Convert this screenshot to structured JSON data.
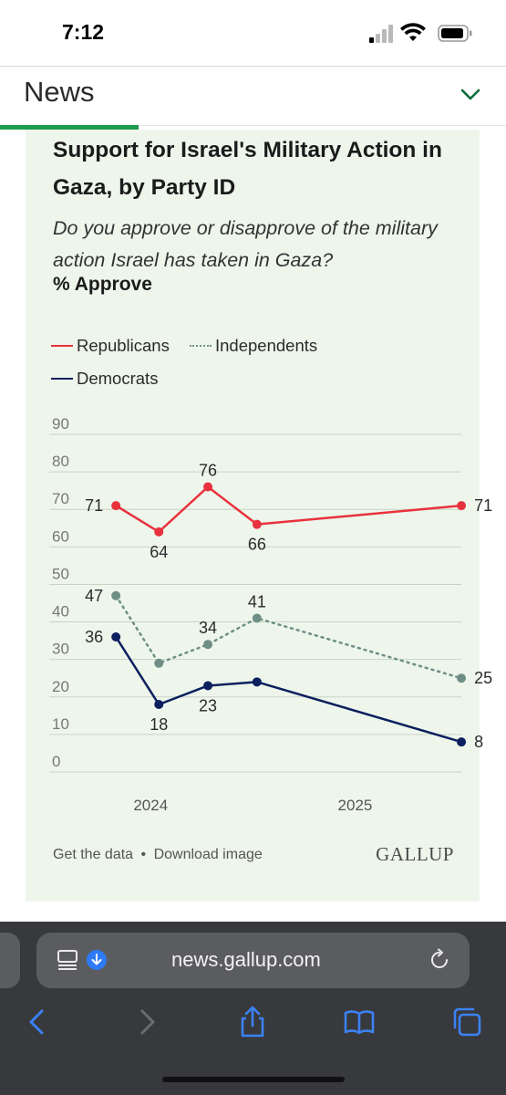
{
  "status_bar": {
    "time": "7:12"
  },
  "header": {
    "title": "News"
  },
  "chart_data": {
    "type": "line",
    "title": "Support for Israel's Military Action in Gaza, by Party ID",
    "subtitle": "Do you approve or disapprove of the military action Israel has taken in Gaza?",
    "measure": "% Approve",
    "x_tick_labels": [
      "2024",
      "2025"
    ],
    "x_ticks": [
      2024.0,
      2025.0
    ],
    "xlim": [
      2023.7,
      2025.6
    ],
    "ylim": [
      0,
      90
    ],
    "y_ticks": [
      0,
      10,
      20,
      30,
      40,
      50,
      60,
      70,
      80,
      90
    ],
    "grid": true,
    "legend_position": "top-left",
    "series": [
      {
        "name": "Republicans",
        "color": "#e8323e",
        "dash": "solid",
        "x": [
          2023.83,
          2024.04,
          2024.28,
          2024.52,
          2025.52
        ],
        "values": [
          71,
          64,
          76,
          66,
          71
        ],
        "label_pos": [
          "left",
          "below",
          "above",
          "below",
          "right"
        ]
      },
      {
        "name": "Independents",
        "color": "#6f8f86",
        "dash": "dotted",
        "x": [
          2023.83,
          2024.04,
          2024.28,
          2024.52,
          2025.52
        ],
        "values": [
          47,
          29,
          34,
          41,
          25
        ],
        "label_pos": [
          "left",
          "none",
          "above",
          "above",
          "right"
        ]
      },
      {
        "name": "Democrats",
        "color": "#0c1f5e",
        "dash": "solid",
        "x": [
          2023.83,
          2024.04,
          2024.28,
          2024.52,
          2025.52
        ],
        "values": [
          36,
          18,
          23,
          24,
          8
        ],
        "label_pos": [
          "left",
          "below",
          "below",
          "none",
          "right"
        ]
      }
    ]
  },
  "footer": {
    "get_data": "Get the data",
    "separator": "•",
    "download": "Download image",
    "logo": "GALLUP"
  },
  "browser": {
    "url": "news.gallup.com"
  }
}
